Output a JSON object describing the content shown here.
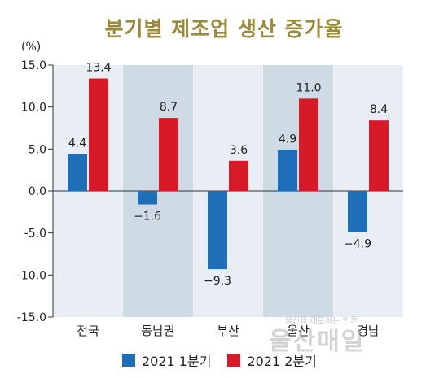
{
  "chart_data": {
    "type": "bar",
    "title": "분기별 제조업 생산 증가율",
    "unit": "(%)",
    "categories": [
      "전국",
      "동남권",
      "부산",
      "울산",
      "경남"
    ],
    "series": [
      {
        "name": "2021 1분기",
        "color": "#1f6fb8",
        "values": [
          4.4,
          -1.6,
          -9.3,
          4.9,
          -4.9
        ]
      },
      {
        "name": "2021 2분기",
        "color": "#d71a28",
        "values": [
          13.4,
          8.7,
          3.6,
          11.0,
          8.4
        ]
      }
    ],
    "ylim": [
      -15.0,
      15.0
    ],
    "yticks": [
      "15.0",
      "10.0",
      "5.0",
      "0.0",
      "-5.0",
      "-10.0",
      "-15.0"
    ],
    "legend_position": "bottom",
    "shaded_columns": [
      1,
      3
    ]
  },
  "watermark": {
    "text": "울산매일",
    "subtext": "울산을 대표하는 언론"
  }
}
